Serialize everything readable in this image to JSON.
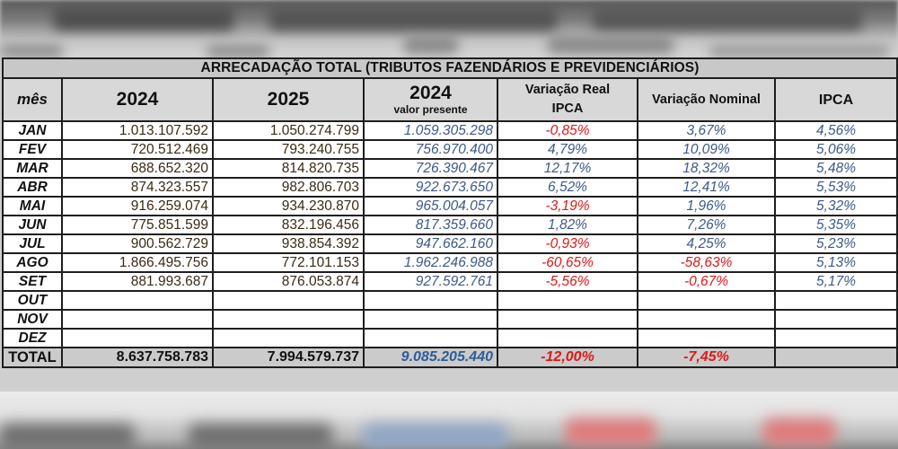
{
  "table": {
    "title": "ARRECADAÇÃO TOTAL (TRIBUTOS FAZENDÁRIOS E PREVIDENCIÁRIOS)",
    "headers": {
      "month": "mês",
      "year_2024": "2024",
      "year_2025": "2025",
      "present_value_year": "2024",
      "present_value_sub": "valor presente",
      "real_variation_line1": "Variação Real",
      "real_variation_line2": "IPCA",
      "nominal_variation": "Variação Nominal",
      "ipca": "IPCA"
    },
    "rows": [
      {
        "month": "JAN",
        "y2024": "1.013.107.592",
        "y2025": "1.050.274.799",
        "pv2024": "1.059.305.298",
        "real_var": "-0,85%",
        "nominal_var": "3,67%",
        "ipca": "4,56%"
      },
      {
        "month": "FEV",
        "y2024": "720.512.469",
        "y2025": "793.240.755",
        "pv2024": "756.970.400",
        "real_var": "4,79%",
        "nominal_var": "10,09%",
        "ipca": "5,06%"
      },
      {
        "month": "MAR",
        "y2024": "688.652.320",
        "y2025": "814.820.735",
        "pv2024": "726.390.467",
        "real_var": "12,17%",
        "nominal_var": "18,32%",
        "ipca": "5,48%"
      },
      {
        "month": "ABR",
        "y2024": "874.323.557",
        "y2025": "982.806.703",
        "pv2024": "922.673.650",
        "real_var": "6,52%",
        "nominal_var": "12,41%",
        "ipca": "5,53%"
      },
      {
        "month": "MAI",
        "y2024": "916.259.074",
        "y2025": "934.230.870",
        "pv2024": "965.004.057",
        "real_var": "-3,19%",
        "nominal_var": "1,96%",
        "ipca": "5,32%"
      },
      {
        "month": "JUN",
        "y2024": "775.851.599",
        "y2025": "832.196.456",
        "pv2024": "817.359.660",
        "real_var": "1,82%",
        "nominal_var": "7,26%",
        "ipca": "5,35%"
      },
      {
        "month": "JUL",
        "y2024": "900.562.729",
        "y2025": "938.854.392",
        "pv2024": "947.662.160",
        "real_var": "-0,93%",
        "nominal_var": "4,25%",
        "ipca": "5,23%"
      },
      {
        "month": "AGO",
        "y2024": "1.866.495.756",
        "y2025": "772.101.153",
        "pv2024": "1.962.246.988",
        "real_var": "-60,65%",
        "nominal_var": "-58,63%",
        "ipca": "5,13%"
      },
      {
        "month": "SET",
        "y2024": "881.993.687",
        "y2025": "876.053.874",
        "pv2024": "927.592.761",
        "real_var": "-5,56%",
        "nominal_var": "-0,67%",
        "ipca": "5,17%"
      },
      {
        "month": "OUT",
        "y2024": "",
        "y2025": "",
        "pv2024": "",
        "real_var": "",
        "nominal_var": "",
        "ipca": ""
      },
      {
        "month": "NOV",
        "y2024": "",
        "y2025": "",
        "pv2024": "",
        "real_var": "",
        "nominal_var": "",
        "ipca": ""
      },
      {
        "month": "DEZ",
        "y2024": "",
        "y2025": "",
        "pv2024": "",
        "real_var": "",
        "nominal_var": "",
        "ipca": ""
      }
    ],
    "total": {
      "label": "TOTAL",
      "y2024": "8.637.758.783",
      "y2025": "7.994.579.737",
      "pv2024": "9.085.205.440",
      "real_var": "-12,00%",
      "nominal_var": "-7,45%",
      "ipca": ""
    }
  },
  "colors": {
    "positive": "#3c5a8a",
    "negative": "#e01818",
    "header_bg": "#d8d8d8",
    "total_bg": "#cbcbcb"
  }
}
